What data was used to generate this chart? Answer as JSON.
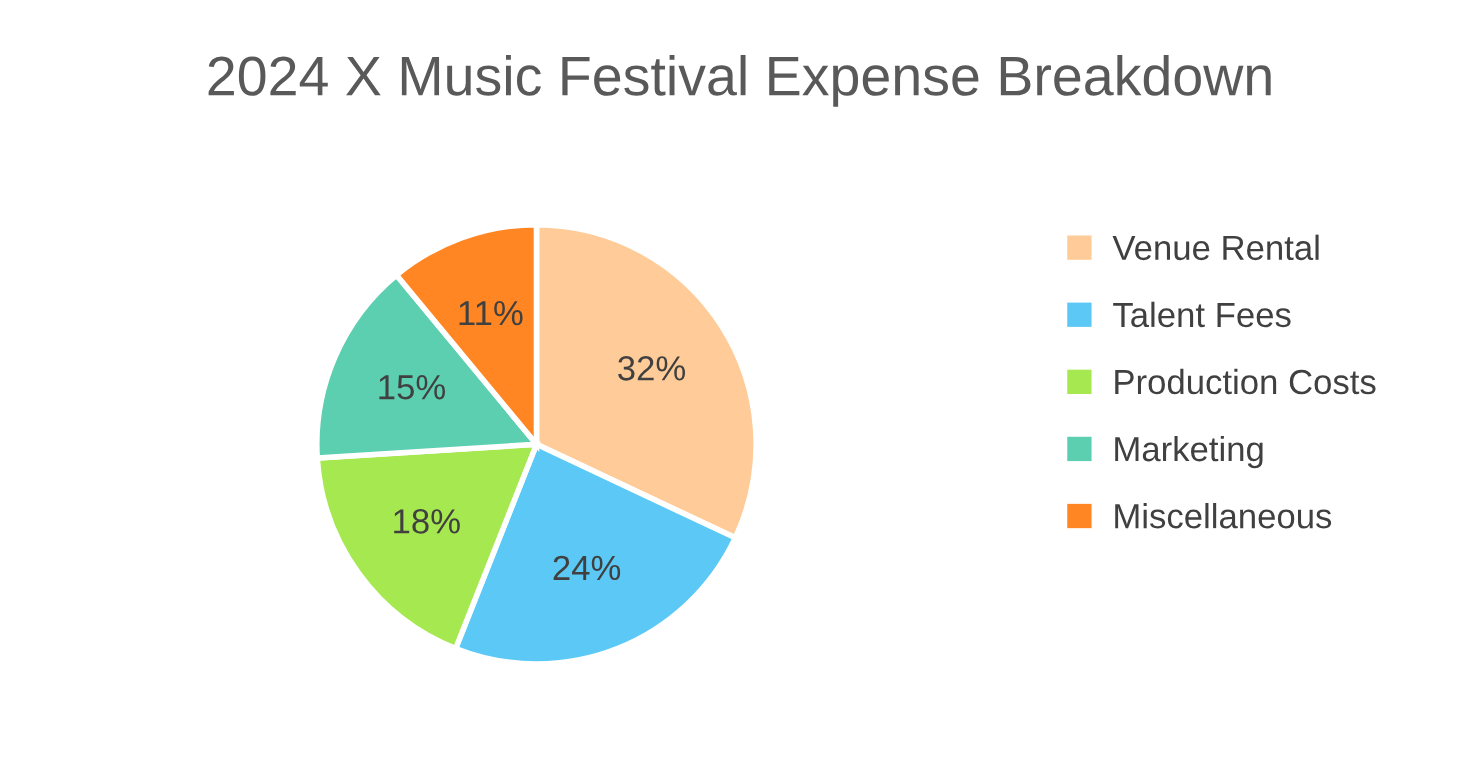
{
  "chart_data": {
    "type": "pie",
    "title": "2024 X Music Festival Expense Breakdown",
    "categories": [
      "Venue Rental",
      "Talent Fees",
      "Production Costs",
      "Marketing",
      "Miscellaneous"
    ],
    "values": [
      32,
      24,
      18,
      15,
      11
    ],
    "value_labels": [
      "32%",
      "24%",
      "18%",
      "15%",
      "11%"
    ],
    "colors": [
      "#ffcc99",
      "#5bc8f5",
      "#a6e84f",
      "#5ccfb0",
      "#ff8622"
    ],
    "legend": "right"
  }
}
